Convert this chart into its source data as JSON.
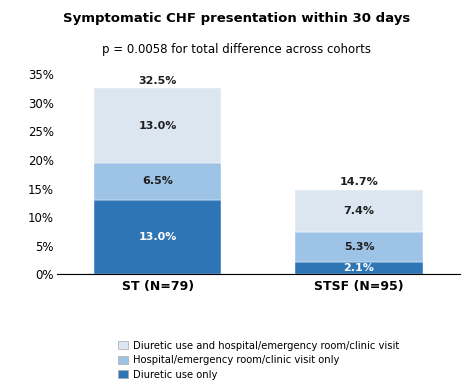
{
  "title": "Symptomatic CHF presentation within 30 days",
  "subtitle": "p = 0.0058 for total difference across cohorts",
  "categories": [
    "ST (N=79)",
    "STSF (N=95)"
  ],
  "segments": {
    "diuretic_only": {
      "values": [
        13.0,
        2.1
      ],
      "color": "#2e75b6",
      "label": "Diuretic use only"
    },
    "hospital_only": {
      "values": [
        6.5,
        5.3
      ],
      "color": "#9dc3e6",
      "label": "Hospital/emergency room/clinic visit only"
    },
    "diuretic_and_hospital": {
      "values": [
        13.0,
        7.4
      ],
      "color": "#dce6f1",
      "label": "Diuretic use and hospital/emergency room/clinic visit"
    }
  },
  "bar_labels": {
    "ST": {
      "diuretic_only": "13.0%",
      "hospital_only": "6.5%",
      "diuretic_and_hospital": "13.0%",
      "total": "32.5%"
    },
    "STSF": {
      "diuretic_only": "2.1%",
      "hospital_only": "5.3%",
      "diuretic_and_hospital": "7.4%",
      "total": "14.7%"
    }
  },
  "text_colors": {
    "diuretic_only_ST": "white",
    "diuretic_only_STSF": "white",
    "hospital_only": "#1f1f1f",
    "diuretic_and_hospital": "#1f1f1f",
    "total": "#1f1f1f"
  },
  "ylim": [
    0,
    37
  ],
  "yticks": [
    0,
    5,
    10,
    15,
    20,
    25,
    30,
    35
  ],
  "ytick_labels": [
    "0%",
    "5%",
    "10%",
    "15%",
    "20%",
    "25%",
    "30%",
    "35%"
  ],
  "background_color": "#ffffff",
  "bar_width": 0.38,
  "x_positions": [
    0.3,
    0.9
  ],
  "xlim": [
    0.0,
    1.2
  ]
}
